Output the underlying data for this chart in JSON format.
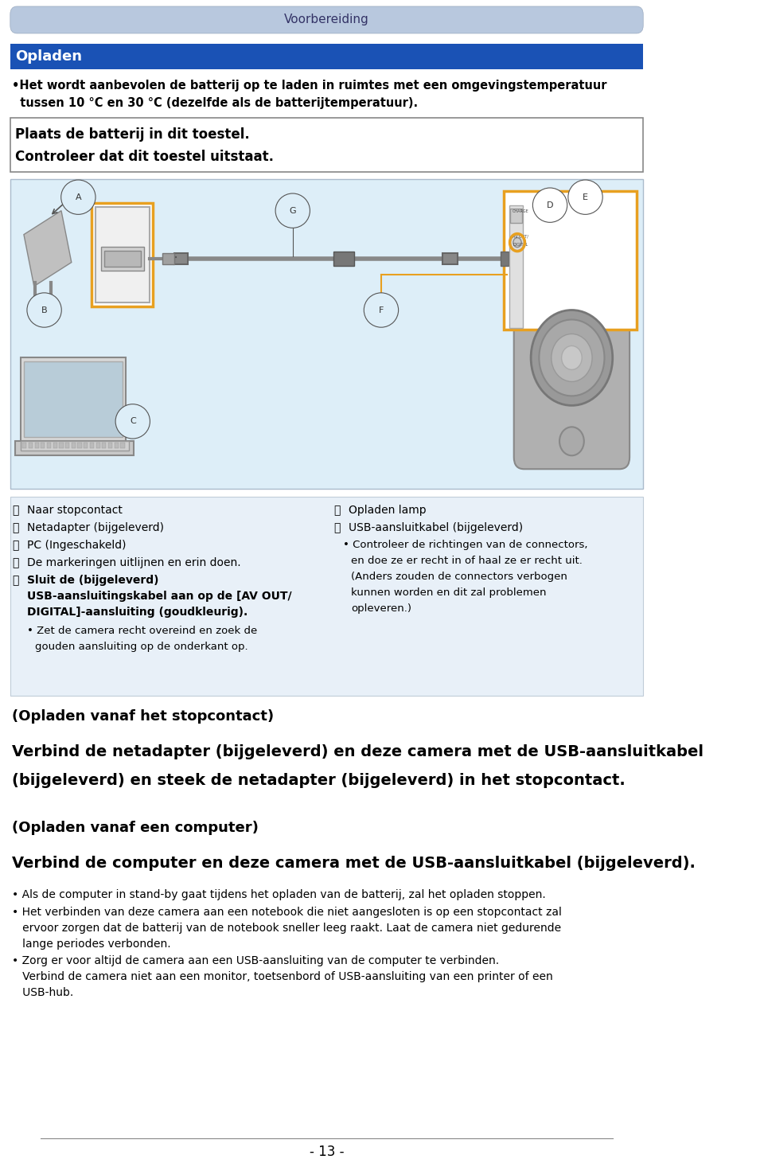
{
  "page_bg": "#ffffff",
  "header_bg": "#b8c8de",
  "header_text": "Voorbereiding",
  "header_text_color": "#333366",
  "section_bg": "#1a52b5",
  "section_title": "Opladen",
  "section_title_color": "#ffffff",
  "notice_bg": "#ffffff",
  "notice_border": "#888888",
  "notice_text1": "Plaats de batterij in dit toestel.",
  "notice_text2": "Controleer dat dit toestel uitstaat.",
  "diagram_bg": "#ddeef8",
  "diagram_border": "#aabbcc",
  "orange": "#e8a020",
  "bullet_intro_line1": "•Het wordt aanbevolen de batterij op te laden in ruimtes met een omgevingstemperatuur",
  "bullet_intro_line2": "  tussen 10 °C en 30 °C (dezelfde als de batterijtemperatuur).",
  "section2_title": "(Opladen vanaf het stopcontact)",
  "section2_body1": "Verbind de netadapter (bijgeleverd) en deze camera met de USB-aansluitkabel",
  "section2_body2": "(bijgeleverd) en steek de netadapter (bijgeleverd) in het stopcontact.",
  "section3_title": "(Opladen vanaf een computer)",
  "section3_body": "Verbind de computer en deze camera met de USB-aansluitkabel (bijgeleverd).",
  "bullet1": "• Als de computer in stand-by gaat tijdens het opladen van de batterij, zal het opladen stoppen.",
  "bullet2a": "• Het verbinden van deze camera aan een notebook die niet aangesloten is op een stopcontact zal",
  "bullet2b": "   ervoor zorgen dat de batterij van de notebook sneller leeg raakt. Laat de camera niet gedurende",
  "bullet2c": "   lange periodes verbonden.",
  "bullet3a": "• Zorg er voor altijd de camera aan een USB-aansluiting van de computer te verbinden.",
  "bullet3b": "   Verbind de camera niet aan een monitor, toetsenbord of USB-aansluiting van een printer of een",
  "bullet3c": "   USB-hub.",
  "page_number": "- 13 -"
}
